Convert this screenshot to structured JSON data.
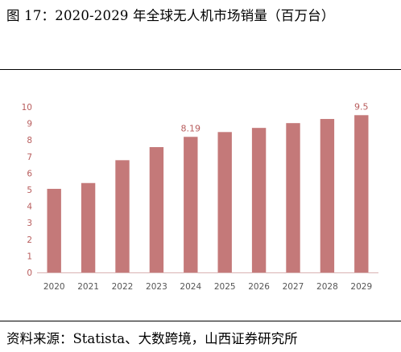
{
  "figure": {
    "title": "图 17：2020-2029 年全球无人机市场销量（百万台）",
    "source": "资料来源：Statista、大数跨境，山西证券研究所"
  },
  "chart_data": {
    "type": "bar",
    "categories": [
      "2020",
      "2021",
      "2022",
      "2023",
      "2024",
      "2025",
      "2026",
      "2027",
      "2028",
      "2029"
    ],
    "values": [
      5.05,
      5.4,
      6.78,
      7.57,
      8.19,
      8.48,
      8.73,
      9.02,
      9.27,
      9.5
    ],
    "data_labels": [
      {
        "index": 4,
        "text": "8.19"
      },
      {
        "index": 9,
        "text": "9.5"
      }
    ],
    "ylim": [
      0,
      10
    ],
    "yticks": [
      0,
      1,
      2,
      3,
      4,
      5,
      6,
      7,
      8,
      9,
      10
    ],
    "grid": false,
    "bar_color": "#c47979",
    "axis_color": "#d9b3b3",
    "label_color": "#b85c5c"
  }
}
